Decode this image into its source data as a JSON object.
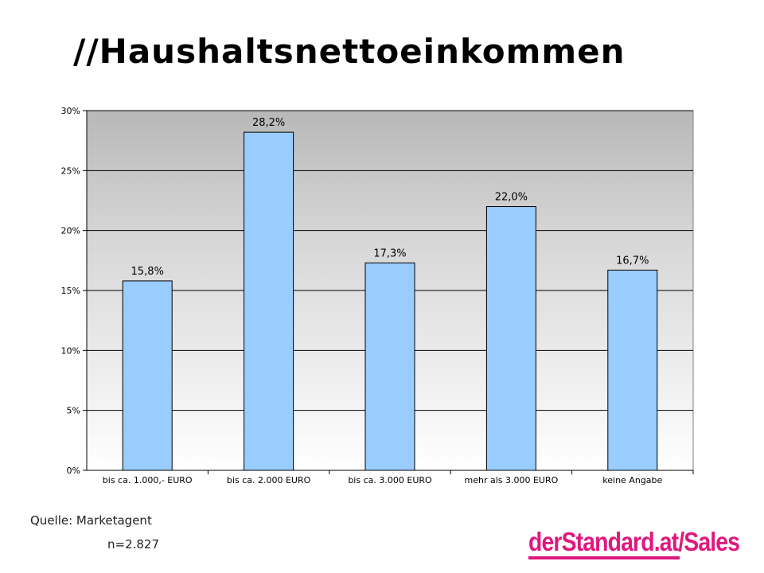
{
  "slide": {
    "title": "//Haushaltsnettoeinkommen",
    "source": "Quelle: Marketagent",
    "sample_size": "n=2.827",
    "logo_text": "derStandard.at/Sales"
  },
  "colors": {
    "bar": "#99ccff",
    "bar_stroke": "#000000",
    "grid": "#000000",
    "background_top": "#b8b8b8",
    "background_bottom": "#ffffff",
    "brand": "#e0187e"
  },
  "chart_data": {
    "type": "bar",
    "title": "",
    "xlabel": "",
    "ylabel": "",
    "categories": [
      "bis ca. 1.000,- EURO",
      "bis ca. 2.000 EURO",
      "bis ca. 3.000 EURO",
      "mehr als 3.000 EURO",
      "keine Angabe"
    ],
    "values": [
      15.8,
      28.2,
      17.3,
      22.0,
      16.7
    ],
    "value_labels": [
      "15,8%",
      "28,2%",
      "17,3%",
      "22,0%",
      "16,7%"
    ],
    "ylim": [
      0,
      30
    ],
    "yticks": [
      0,
      5,
      10,
      15,
      20,
      25,
      30
    ],
    "ytick_labels": [
      "0%",
      "5%",
      "10%",
      "15%",
      "20%",
      "25%",
      "30%"
    ],
    "grid": true,
    "legend": "none"
  }
}
